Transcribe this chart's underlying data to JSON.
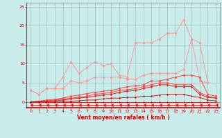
{
  "x": [
    0,
    1,
    2,
    3,
    4,
    5,
    6,
    7,
    8,
    9,
    10,
    11,
    12,
    13,
    14,
    15,
    16,
    17,
    18,
    19,
    20,
    21,
    22,
    23
  ],
  "series": [
    {
      "name": "max_rafales",
      "color": "#ff9999",
      "marker": "o",
      "markersize": 1.8,
      "linewidth": 0.7,
      "values": [
        3.0,
        2.0,
        3.5,
        3.5,
        6.5,
        10.5,
        7.5,
        9.0,
        10.5,
        9.5,
        10.0,
        7.0,
        6.5,
        15.5,
        15.5,
        15.5,
        16.5,
        18.0,
        18.0,
        21.5,
        16.5,
        15.5,
        5.0,
        null
      ]
    },
    {
      "name": "moy_rafales",
      "color": "#ff9999",
      "marker": "o",
      "markersize": 1.8,
      "linewidth": 0.7,
      "values": [
        3.0,
        2.0,
        3.5,
        3.5,
        3.5,
        5.5,
        5.0,
        5.5,
        6.5,
        6.5,
        6.5,
        6.5,
        6.0,
        6.0,
        7.0,
        7.5,
        7.5,
        7.5,
        7.5,
        8.5,
        16.5,
        5.5,
        5.0,
        null
      ]
    },
    {
      "name": "max_vent",
      "color": "#ff4444",
      "marker": "o",
      "markersize": 1.5,
      "linewidth": 0.7,
      "values": [
        0.0,
        0.2,
        0.5,
        0.7,
        1.0,
        1.5,
        1.8,
        2.2,
        2.5,
        2.8,
        3.0,
        3.5,
        4.0,
        4.2,
        4.5,
        5.5,
        5.5,
        6.0,
        6.5,
        7.0,
        7.0,
        6.5,
        2.0,
        1.5
      ]
    },
    {
      "name": "moy_vent",
      "color": "#ff4444",
      "marker": "o",
      "markersize": 1.5,
      "linewidth": 0.7,
      "values": [
        0.0,
        0.1,
        0.3,
        0.5,
        0.7,
        1.0,
        1.2,
        1.5,
        2.0,
        2.2,
        2.5,
        3.0,
        3.2,
        3.5,
        4.0,
        4.5,
        5.0,
        5.0,
        4.5,
        4.5,
        4.5,
        2.5,
        1.5,
        1.0
      ]
    },
    {
      "name": "moy_vent2",
      "color": "#dd2222",
      "marker": "o",
      "markersize": 1.2,
      "linewidth": 0.7,
      "values": [
        0.0,
        0.0,
        0.2,
        0.3,
        0.5,
        0.8,
        1.0,
        1.2,
        1.5,
        1.8,
        2.0,
        2.5,
        2.8,
        3.0,
        3.5,
        4.0,
        4.5,
        4.5,
        4.0,
        4.0,
        4.0,
        2.0,
        1.2,
        1.0
      ]
    },
    {
      "name": "min_vent",
      "color": "#cc0000",
      "marker": "o",
      "markersize": 1.0,
      "linewidth": 0.6,
      "values": [
        0.0,
        0.0,
        0.0,
        0.0,
        0.1,
        0.2,
        0.3,
        0.5,
        0.5,
        0.8,
        1.0,
        1.0,
        1.2,
        1.2,
        1.5,
        1.5,
        1.8,
        2.0,
        2.0,
        2.0,
        1.5,
        1.2,
        0.5,
        0.3
      ]
    },
    {
      "name": "zero_line",
      "color": "#cc0000",
      "marker": "o",
      "markersize": 0.8,
      "linewidth": 0.5,
      "values": [
        0.0,
        0.0,
        0.0,
        0.0,
        0.0,
        0.0,
        0.0,
        0.0,
        0.0,
        0.0,
        0.0,
        0.0,
        0.0,
        0.0,
        0.0,
        0.0,
        0.0,
        0.0,
        0.0,
        0.0,
        0.0,
        0.0,
        0.0,
        0.0
      ]
    },
    {
      "name": "arrow_line",
      "color": "#ff0000",
      "marker": 4,
      "markersize": 3,
      "linewidth": 0.6,
      "values": [
        -0.7,
        -0.7,
        -0.7,
        -0.7,
        -0.7,
        -0.7,
        -0.7,
        -0.7,
        -0.7,
        -0.7,
        -0.7,
        -0.7,
        -0.7,
        -0.7,
        -0.7,
        -0.7,
        -0.7,
        -0.7,
        -0.7,
        -0.7,
        -0.7,
        -0.7,
        -0.7,
        -0.7
      ]
    }
  ],
  "xlabel": "Vent moyen/en rafales ( km/h )",
  "xlim": [
    -0.5,
    23.5
  ],
  "ylim": [
    -1.5,
    26
  ],
  "xticks": [
    0,
    1,
    2,
    3,
    4,
    5,
    6,
    7,
    8,
    9,
    10,
    11,
    12,
    13,
    14,
    15,
    16,
    17,
    18,
    19,
    20,
    21,
    22,
    23
  ],
  "yticks": [
    0,
    5,
    10,
    15,
    20,
    25
  ],
  "background_color": "#c8ecea",
  "grid_color": "#a0b8b6",
  "xlabel_color": "#cc0000",
  "tick_color": "#cc0000",
  "figsize": [
    3.2,
    2.0
  ],
  "dpi": 100
}
